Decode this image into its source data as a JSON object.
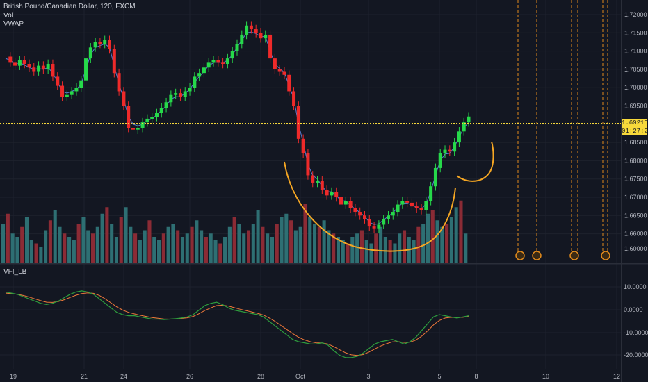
{
  "instrument": {
    "title": "British Pound/Canadian Dollar, 120, FXCM",
    "indicator_vol": "Vol",
    "indicator_vwap": "VWAP",
    "indicator_vfi": "VFI_LB"
  },
  "last_price_label": "1.69215",
  "countdown_label": "01:27:26",
  "colors": {
    "background": "#131722",
    "up": "#26d94a",
    "down": "#ef2a2a",
    "vol_up": "#2e6f73",
    "vol_down": "#8b2b35",
    "vwap": "#5b7ed6",
    "annotation": "#f5a623",
    "last_price_line": "#f7d93b",
    "event_line": "#e08a1c",
    "vfi_main": "#2e9e3e",
    "vfi_signal": "#f0793a"
  },
  "price_axis": {
    "ticks": [
      "1.72000",
      "1.71500",
      "1.71000",
      "1.70500",
      "1.70000",
      "1.69500",
      "1.69000",
      "1.68500",
      "1.68000",
      "1.67500",
      "1.67000",
      "1.66500",
      "1.66000",
      "1.60000"
    ]
  },
  "vfi_axis": {
    "ticks": [
      "10.0000",
      "0.0000",
      "-10.0000",
      "-20.0000"
    ],
    "top_label": "10.0000"
  },
  "time_axis": {
    "ticks": [
      "19",
      "21",
      "24",
      "26",
      "28",
      "Oct",
      "3",
      "5",
      "8",
      "10",
      "12"
    ]
  },
  "chart_data": [
    {
      "type": "candlestick",
      "title": "British Pound/Canadian Dollar, 120, FXCM",
      "ylim": [
        1.659,
        1.7215
      ],
      "last_price": 1.69215,
      "series": [
        {
          "name": "Price path (approx.)",
          "values": [
            1.7085,
            1.707,
            1.706,
            1.7075,
            1.7065,
            1.7055,
            1.7045,
            1.706,
            1.705,
            1.7065,
            1.703,
            1.7005,
            1.6975,
            1.698,
            1.699,
            1.7,
            1.702,
            1.708,
            1.711,
            1.7125,
            1.712,
            1.713,
            1.7105,
            1.704,
            1.699,
            1.695,
            1.689,
            1.6885,
            1.689,
            1.6905,
            1.6915,
            1.692,
            1.693,
            1.6945,
            1.696,
            1.698,
            1.6985,
            1.6975,
            1.699,
            1.7,
            1.703,
            1.704,
            1.7055,
            1.707,
            1.7075,
            1.707,
            1.7065,
            1.708,
            1.71,
            1.712,
            1.7145,
            1.717,
            1.716,
            1.715,
            1.7135,
            1.7145,
            1.708,
            1.705,
            1.7045,
            1.7035,
            1.699,
            1.695,
            1.686,
            1.682,
            1.676,
            1.674,
            1.6745,
            1.672,
            1.6705,
            1.6715,
            1.67,
            1.668,
            1.669,
            1.667,
            1.666,
            1.665,
            1.664,
            1.662,
            1.6615,
            1.6625,
            1.664,
            1.665,
            1.666,
            1.668,
            1.669,
            1.6685,
            1.6675,
            1.667,
            1.6665,
            1.669,
            1.673,
            1.678,
            1.682,
            1.683,
            1.6825,
            1.685,
            1.688,
            1.6905,
            1.6921
          ]
        },
        {
          "name": "VWAP",
          "values": [
            1.708,
            1.7075,
            1.7065,
            1.7068,
            1.7062,
            1.7055,
            1.705,
            1.7052,
            1.705,
            1.7055,
            1.704,
            1.7015,
            1.699,
            1.6985,
            1.699,
            1.6995,
            1.701,
            1.705,
            1.709,
            1.711,
            1.7115,
            1.712,
            1.711,
            1.706,
            1.701,
            1.697,
            1.692,
            1.69,
            1.6895,
            1.69,
            1.691,
            1.6915,
            1.6925,
            1.6938,
            1.695,
            1.6968,
            1.6975,
            1.6975,
            1.6985,
            1.6995,
            1.7015,
            1.703,
            1.7045,
            1.706,
            1.7068,
            1.7068,
            1.7068,
            1.7075,
            1.709,
            1.711,
            1.713,
            1.715,
            1.7152,
            1.7148,
            1.714,
            1.714,
            1.71,
            1.7065,
            1.7052,
            1.7042,
            1.7005,
            1.697,
            1.69,
            1.685,
            1.679,
            1.676,
            1.675,
            1.673,
            1.6715,
            1.6715,
            1.6705,
            1.669,
            1.669,
            1.6678,
            1.6668,
            1.6658,
            1.6648,
            1.6632,
            1.6625,
            1.6628,
            1.6638,
            1.6648,
            1.6658,
            1.6672,
            1.6684,
            1.6684,
            1.6678,
            1.6673,
            1.6668,
            1.6682,
            1.6715,
            1.676,
            1.68,
            1.6818,
            1.682,
            1.6838,
            1.6865,
            1.689,
            1.6905
          ]
        }
      ],
      "annotations": [
        "Hand-drawn orange rounded-bottom (cup) curve under price",
        "Orange handle curve to the right of last candle"
      ]
    },
    {
      "type": "bar",
      "title": "Vol",
      "series": [
        {
          "name": "Vol",
          "values": [
            60,
            75,
            45,
            40,
            55,
            70,
            35,
            30,
            25,
            50,
            65,
            80,
            55,
            45,
            40,
            35,
            60,
            70,
            50,
            45,
            55,
            75,
            85,
            60,
            40,
            70,
            85,
            55,
            45,
            35,
            50,
            65,
            40,
            35,
            45,
            55,
            60,
            50,
            40,
            45,
            55,
            65,
            50,
            40,
            45,
            35,
            30,
            40,
            55,
            70,
            60,
            45,
            50,
            60,
            80,
            55,
            45,
            40,
            60,
            70,
            75,
            65,
            50,
            55,
            90,
            70,
            60,
            55,
            65,
            50,
            45,
            40,
            35,
            30,
            40,
            45,
            50,
            35,
            30,
            45,
            55,
            40,
            35,
            30,
            45,
            50,
            40,
            35,
            55,
            60,
            75,
            80,
            65,
            55,
            60,
            70,
            85,
            95,
            45
          ]
        }
      ]
    },
    {
      "type": "line",
      "title": "VFI_LB",
      "ylim": [
        -24,
        14
      ],
      "series": [
        {
          "name": "VFI",
          "values": [
            8,
            7.5,
            7,
            6,
            5,
            4,
            3,
            2.5,
            3,
            4,
            5.5,
            7,
            8,
            8.5,
            8,
            7,
            5,
            3,
            1,
            -1,
            -2,
            -2.5,
            -2.5,
            -3,
            -3.5,
            -4,
            -4,
            -4.2,
            -4,
            -3.8,
            -3.5,
            -3,
            -2,
            0,
            2,
            3,
            3.5,
            2.5,
            1,
            0,
            -0.5,
            -1,
            -1.5,
            -2,
            -3,
            -5,
            -7,
            -9,
            -11,
            -13,
            -14,
            -14.5,
            -15,
            -15,
            -14.5,
            -15.5,
            -18,
            -20,
            -21,
            -21,
            -20.5,
            -19,
            -17,
            -15,
            -14,
            -13.5,
            -13,
            -14,
            -15,
            -14,
            -12,
            -9,
            -6,
            -3,
            -2,
            -2.5,
            -3,
            -3.5,
            -3,
            -2.5
          ]
        },
        {
          "name": "Signal",
          "values": [
            7.5,
            7.3,
            7,
            6.5,
            5.8,
            5,
            4.2,
            3.5,
            3.4,
            3.8,
            4.6,
            5.6,
            6.6,
            7.3,
            7.6,
            7.4,
            6.5,
            5,
            3.2,
            1.4,
            0,
            -1,
            -1.7,
            -2.3,
            -2.8,
            -3.3,
            -3.6,
            -3.9,
            -4,
            -3.9,
            -3.7,
            -3.4,
            -2.8,
            -1.6,
            -0.2,
            1,
            2,
            2.2,
            1.8,
            1.1,
            0.4,
            -0.2,
            -0.8,
            -1.4,
            -2.2,
            -3.5,
            -5,
            -6.8,
            -8.6,
            -10.4,
            -12,
            -13.2,
            -14,
            -14.5,
            -14.6,
            -15,
            -16.2,
            -17.6,
            -18.9,
            -19.8,
            -20.1,
            -19.7,
            -18.6,
            -17.2,
            -15.9,
            -14.9,
            -14.1,
            -14,
            -14.3,
            -14.2,
            -13.3,
            -11.5,
            -9.2,
            -6.6,
            -4.6,
            -3.5,
            -3.2,
            -3.3,
            -3.2,
            -2.9
          ]
        }
      ]
    }
  ]
}
